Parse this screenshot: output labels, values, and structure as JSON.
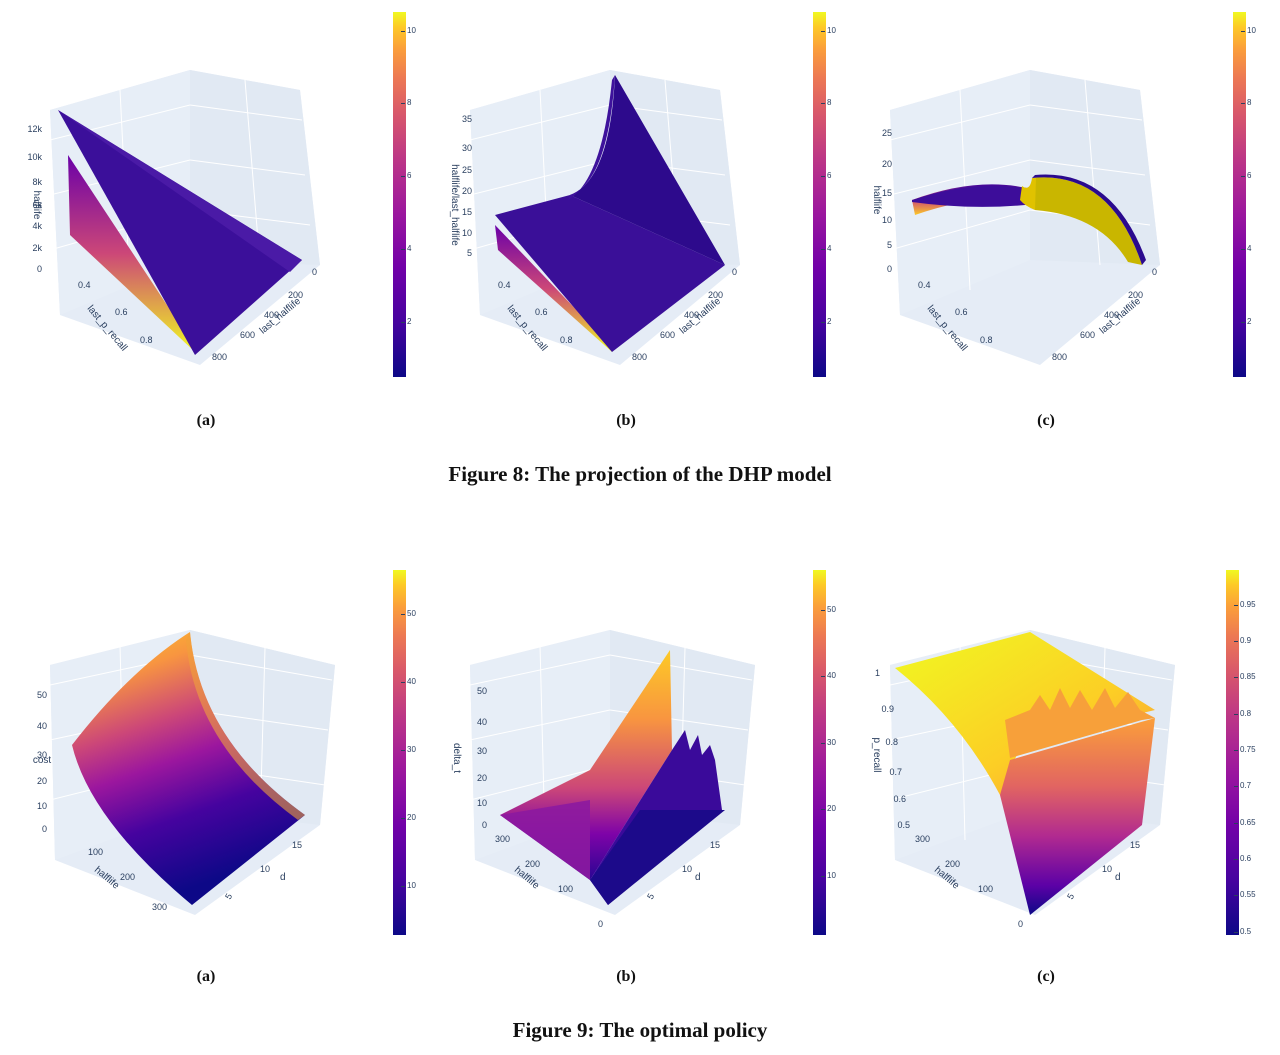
{
  "figure8": {
    "caption": "Figure 8: The projection of the DHP model",
    "panels": [
      {
        "label": "(a)",
        "zlabel": "halflife",
        "zticks": [
          "0",
          "2k",
          "4k",
          "6k",
          "8k",
          "10k",
          "12k"
        ],
        "xlabel": "last_p_recall",
        "xticks": [
          "0.4",
          "0.6",
          "0.8"
        ],
        "ylabel": "last_halflife",
        "yticks": [
          "0",
          "200",
          "400",
          "600",
          "800"
        ],
        "colorbar_ticks": [
          "2",
          "4",
          "6",
          "8",
          "10"
        ]
      },
      {
        "label": "(b)",
        "zlabel": "halflife/last_halflife",
        "zticks": [
          "5",
          "10",
          "15",
          "20",
          "25",
          "30",
          "35"
        ],
        "xlabel": "last_p_recall",
        "xticks": [
          "0.4",
          "0.6",
          "0.8"
        ],
        "ylabel": "last_halflife",
        "yticks": [
          "0",
          "200",
          "400",
          "600",
          "800"
        ],
        "colorbar_ticks": [
          "2",
          "4",
          "6",
          "8",
          "10"
        ]
      },
      {
        "label": "(c)",
        "zlabel": "halflife",
        "zticks": [
          "0",
          "5",
          "10",
          "15",
          "20",
          "25"
        ],
        "xlabel": "last_p_recall",
        "xticks": [
          "0.4",
          "0.6",
          "0.8"
        ],
        "ylabel": "last_halflife",
        "yticks": [
          "0",
          "200",
          "400",
          "600",
          "800"
        ],
        "colorbar_ticks": [
          "2",
          "4",
          "6",
          "8",
          "10"
        ]
      }
    ]
  },
  "figure9": {
    "caption": "Figure 9: The optimal policy",
    "panels": [
      {
        "label": "(a)",
        "zlabel": "cost",
        "zticks": [
          "0",
          "10",
          "20",
          "30",
          "40",
          "50"
        ],
        "xlabel": "halflife",
        "xticks": [
          "100",
          "200",
          "300"
        ],
        "ylabel": "d",
        "yticks": [
          "5",
          "10",
          "15"
        ],
        "colorbar_ticks": [
          "10",
          "20",
          "30",
          "40",
          "50"
        ]
      },
      {
        "label": "(b)",
        "zlabel": "delta_t",
        "zticks": [
          "0",
          "10",
          "20",
          "30",
          "40",
          "50"
        ],
        "xlabel": "halflife",
        "xticks": [
          "0",
          "100",
          "200",
          "300"
        ],
        "ylabel": "d",
        "yticks": [
          "5",
          "10",
          "15"
        ],
        "colorbar_ticks": [
          "10",
          "20",
          "30",
          "40",
          "50"
        ]
      },
      {
        "label": "(c)",
        "zlabel": "p_recall",
        "zticks": [
          "0.5",
          "0.6",
          "0.7",
          "0.8",
          "0.9",
          "1"
        ],
        "xlabel": "halflife",
        "xticks": [
          "0",
          "100",
          "200",
          "300"
        ],
        "ylabel": "d",
        "yticks": [
          "5",
          "10",
          "15"
        ],
        "colorbar_ticks": [
          "0.5",
          "0.55",
          "0.6",
          "0.65",
          "0.7",
          "0.75",
          "0.8",
          "0.85",
          "0.9",
          "0.95"
        ]
      }
    ]
  },
  "colors": {
    "plasma_low": "#0d0887",
    "plasma_mid": "#cc4778",
    "plasma_high": "#f0f921",
    "surface_bg": "#e5ecf6"
  }
}
